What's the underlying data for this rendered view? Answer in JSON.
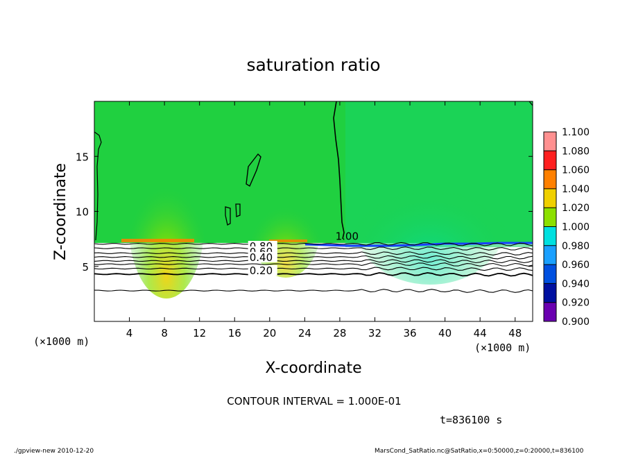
{
  "chart_data": {
    "type": "heatmap",
    "title": "saturation ratio",
    "xlabel": "X-coordinate",
    "ylabel": "Z-coordinate",
    "x_unit_left": "(×1000 m)",
    "x_unit_right": "(×1000 m)",
    "xlim": [
      0,
      50
    ],
    "ylim": [
      0,
      20
    ],
    "x_ticks": [
      4,
      8,
      12,
      16,
      20,
      24,
      28,
      32,
      36,
      40,
      44,
      48
    ],
    "y_ticks": [
      5,
      10,
      15
    ],
    "colorbar": {
      "levels": [
        0.9,
        0.92,
        0.94,
        0.96,
        0.98,
        1.0,
        1.02,
        1.04,
        1.06,
        1.08,
        1.1
      ],
      "labels": [
        "0.900",
        "0.920",
        "0.940",
        "0.960",
        "0.980",
        "1.000",
        "1.020",
        "1.040",
        "1.060",
        "1.080",
        "1.100"
      ],
      "colors": [
        "#6a00b0",
        "#0010a0",
        "#0050e0",
        "#1aa0ff",
        "#00e0e0",
        "#20d040",
        "#8ce000",
        "#f0d000",
        "#ff8000",
        "#ff2020",
        "#ff9090"
      ]
    },
    "contour_labels": [
      {
        "text": "1.00",
        "x": 27.5,
        "z": 7.4
      },
      {
        "text": "0.80",
        "x": 17.7,
        "z": 6.5
      },
      {
        "text": "0.60",
        "x": 17.7,
        "z": 6.0
      },
      {
        "text": "0.40",
        "x": 17.7,
        "z": 5.5
      },
      {
        "text": "0.20",
        "x": 17.7,
        "z": 4.3
      }
    ],
    "contour_levels_below": [
      0.9,
      0.8,
      0.7,
      0.6,
      0.5,
      0.4,
      0.3,
      0.2,
      0.1
    ],
    "contour_interval_text": "CONTOUR INTERVAL = 1.000E-01",
    "time_text": "t=836100 s"
  },
  "footer": {
    "left": "./gpview-new   2010-12-20",
    "right": "MarsCond_SatRatio.nc@SatRatio,x=0:50000,z=0:20000,t=836100"
  }
}
